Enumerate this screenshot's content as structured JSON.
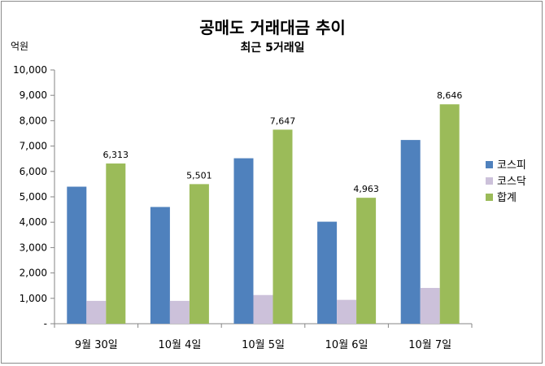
{
  "chart_data": {
    "type": "bar",
    "title": "공매도 거래대금 추이",
    "subtitle": "최근 5거래일",
    "ylabel": "억원",
    "ylim": [
      0,
      10000
    ],
    "yticks": [
      {
        "value": 0,
        "label": "-"
      },
      {
        "value": 1000,
        "label": "1,000"
      },
      {
        "value": 2000,
        "label": "2,000"
      },
      {
        "value": 3000,
        "label": "3,000"
      },
      {
        "value": 4000,
        "label": "4,000"
      },
      {
        "value": 5000,
        "label": "5,000"
      },
      {
        "value": 6000,
        "label": "6,000"
      },
      {
        "value": 7000,
        "label": "7,000"
      },
      {
        "value": 8000,
        "label": "8,000"
      },
      {
        "value": 9000,
        "label": "9,000"
      },
      {
        "value": 10000,
        "label": "10,000"
      }
    ],
    "categories": [
      "9월 30일",
      "10월 4일",
      "10월 5일",
      "10월 6일",
      "10월 7일"
    ],
    "series": [
      {
        "name": "코스피",
        "color": "#4f81bd",
        "values": [
          5400,
          4600,
          6520,
          4020,
          7240
        ]
      },
      {
        "name": "코스닥",
        "color": "#ccc1da",
        "values": [
          900,
          900,
          1130,
          940,
          1410
        ]
      },
      {
        "name": "합계",
        "color": "#9bbb59",
        "values": [
          6313,
          5501,
          7647,
          4963,
          8646
        ],
        "labels": [
          "6,313",
          "5,501",
          "7,647",
          "4,963",
          "8,646"
        ]
      }
    ],
    "grid": false,
    "legend": "right"
  }
}
